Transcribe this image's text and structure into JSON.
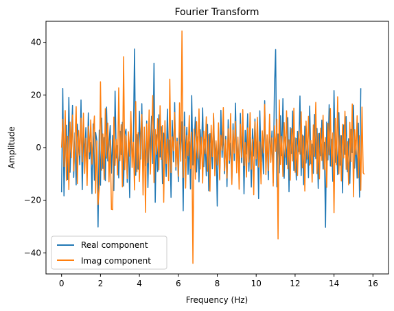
{
  "chart_data": {
    "type": "line",
    "title": "Fourier Transform",
    "xlabel": "Frequency (Hz)",
    "ylabel": "Amplitude",
    "xlim": [
      -0.8,
      16.8
    ],
    "ylim": [
      -48,
      48
    ],
    "xticks": [
      0,
      2,
      4,
      6,
      8,
      10,
      12,
      14,
      16
    ],
    "xtick_labels": [
      "0",
      "2",
      "4",
      "6",
      "8",
      "10",
      "12",
      "14",
      "16"
    ],
    "yticks": [
      -40,
      -20,
      0,
      20,
      40
    ],
    "ytick_labels": [
      "−40",
      "−20",
      "0",
      "20",
      "40"
    ],
    "grid": false,
    "legend_position": "lower-left",
    "x": {
      "start": 0,
      "step": 0.0625,
      "count": 256
    },
    "series": [
      {
        "name": "Real component",
        "color": "#1f77b4",
        "values": [
          -17.0,
          22.5,
          -18.4,
          3.2,
          8.5,
          -12.1,
          19.1,
          -9.4,
          2.7,
          16.0,
          -11.3,
          5.6,
          -14.2,
          8.9,
          3.0,
          -6.5,
          18.1,
          -16.0,
          4.4,
          -2.1,
          7.6,
          -10.8,
          13.2,
          -4.3,
          1.9,
          -17.5,
          9.0,
          -12.4,
          5.8,
          2.6,
          -30.2,
          6.7,
          -14.3,
          11.2,
          -7.9,
          3.8,
          -12.6,
          15.4,
          -5.1,
          1.2,
          8.4,
          -9.7,
          4.6,
          -16.3,
          21.5,
          -3.9,
          0.8,
          -11.5,
          6.2,
          -2.7,
          9.6,
          -14.6,
          5.1,
          7.0,
          -13.2,
          3.4,
          -19.0,
          11.0,
          -4.8,
          2.1,
          37.5,
          -10.5,
          5.0,
          -8.2,
          13.8,
          -4.4,
          16.7,
          -12.0,
          3.3,
          -6.9,
          10.1,
          -15.2,
          7.4,
          -2.3,
          11.9,
          -6.1,
          32.0,
          -20.8,
          4.9,
          -9.1,
          12.5,
          -3.6,
          8.0,
          -13.7,
          5.5,
          0.4,
          -11.0,
          14.6,
          -6.3,
          2.8,
          -18.9,
          10.3,
          -5.4,
          17.1,
          -8.6,
          3.6,
          -12.9,
          6.0,
          -1.5,
          9.8,
          -24.0,
          13.5,
          -4.1,
          7.7,
          -10.2,
          2.2,
          -15.7,
          19.8,
          -6.6,
          1.1,
          11.6,
          -9.3,
          4.1,
          -13.0,
          6.8,
          -2.0,
          15.1,
          -7.2,
          3.1,
          -10.7,
          8.8,
          -16.4,
          5.3,
          0.6,
          -8.0,
          12.3,
          -5.0,
          2.5,
          -22.2,
          7.9,
          -11.8,
          14.2,
          -3.7,
          6.4,
          -9.9,
          4.3,
          -14.8,
          10.6,
          -6.0,
          1.7,
          -12.7,
          9.1,
          -4.9,
          16.9,
          -7.5,
          2.9,
          -11.1,
          13.0,
          -5.7,
          8.3,
          -17.6,
          6.6,
          -2.4,
          12.8,
          -9.0,
          3.9,
          -15.0,
          7.1,
          -3.2,
          10.9,
          -6.8,
          4.7,
          -19.4,
          14.0,
          -5.3,
          1.4,
          -10.0,
          17.8,
          -8.3,
          3.5,
          -12.2,
          9.4,
          -4.6,
          6.3,
          -13.4,
          22.0,
          37.3,
          -14.9,
          5.2,
          -9.6,
          12.1,
          -3.0,
          18.6,
          -11.7,
          4.0,
          -6.4,
          11.4,
          -16.8,
          7.6,
          -2.2,
          13.9,
          -8.7,
          3.7,
          -12.3,
          6.1,
          -1.6,
          19.6,
          -10.6,
          4.8,
          -14.1,
          8.2,
          -5.9,
          2.3,
          -11.4,
          15.8,
          -6.2,
          1.3,
          -9.8,
          12.6,
          -4.2,
          7.3,
          -15.5,
          5.4,
          -3.1,
          10.4,
          -8.1,
          2.0,
          -30.3,
          9.7,
          -4.7,
          16.3,
          -7.0,
          3.2,
          -12.8,
          21.7,
          -5.6,
          1.8,
          -10.3,
          13.3,
          -6.7,
          4.5,
          -17.2,
          8.6,
          -2.6,
          11.8,
          -9.2,
          3.4,
          -13.6,
          6.9,
          -1.9,
          16.1,
          -7.8,
          2.7,
          -11.6,
          9.3,
          -18.8,
          22.6
        ]
      },
      {
        "name": "Imag component",
        "color": "#ff7f0e",
        "values": [
          0.0,
          10.8,
          -7.2,
          14.1,
          -12.5,
          4.3,
          -16.0,
          9.7,
          -3.8,
          12.4,
          -8.9,
          2.1,
          15.6,
          -13.7,
          6.5,
          -2.9,
          11.2,
          -5.4,
          13.1,
          -9.8,
          3.6,
          -14.4,
          8.1,
          -1.7,
          10.5,
          -6.3,
          4.9,
          12.0,
          -17.3,
          2.5,
          -21.7,
          -15.3,
          25.0,
          -8.6,
          5.2,
          -12.1,
          14.8,
          -4.0,
          9.3,
          -13.0,
          2.8,
          -23.5,
          -23.6,
          11.6,
          -6.8,
          3.1,
          -10.4,
          22.7,
          -5.0,
          8.7,
          -14.9,
          34.5,
          -8.4,
          4.4,
          -11.8,
          6.0,
          -3.3,
          13.7,
          -7.6,
          2.0,
          -16.1,
          17.5,
          -9.2,
          5.7,
          -12.9,
          3.4,
          12.6,
          -18.0,
          7.8,
          -24.6,
          9.0,
          -5.8,
          14.3,
          -10.1,
          4.2,
          19.8,
          -13.3,
          6.9,
          -2.6,
          11.0,
          -8.5,
          15.9,
          -4.5,
          8.4,
          -20.8,
          10.2,
          -6.1,
          3.3,
          -12.6,
          26.0,
          -9.5,
          4.1,
          -1.2,
          13.4,
          -7.3,
          2.4,
          -10.9,
          17.0,
          -5.2,
          44.3,
          -11.3,
          8.0,
          -15.4,
          4.6,
          -3.0,
          12.2,
          -7.9,
          5.9,
          -44.0,
          7.0,
          -12.0,
          9.9,
          -4.1,
          14.7,
          -8.1,
          3.9,
          -13.5,
          6.2,
          -2.3,
          11.7,
          -9.0,
          5.0,
          -16.6,
          8.5,
          -3.5,
          13.0,
          -10.7,
          2.6,
          -6.6,
          9.4,
          -12.3,
          4.7,
          -1.0,
          15.2,
          -8.8,
          3.0,
          -11.6,
          7.1,
          -4.8,
          12.9,
          -14.0,
          6.7,
          -2.1,
          10.0,
          -9.6,
          4.0,
          -15.8,
          8.9,
          -3.7,
          14.4,
          -6.9,
          1.9,
          -11.2,
          7.5,
          -5.5,
          13.3,
          -8.2,
          3.2,
          -17.9,
          9.8,
          -4.3,
          11.5,
          -7.4,
          2.2,
          -13.8,
          6.4,
          -2.0,
          16.4,
          -10.3,
          4.9,
          -8.7,
          12.7,
          -5.6,
          3.7,
          -14.6,
          8.3,
          -1.4,
          10.8,
          -34.7,
          18.1,
          -6.4,
          4.3,
          -11.0,
          9.5,
          -3.6,
          14.0,
          -8.0,
          2.9,
          -12.4,
          7.2,
          -5.1,
          15.0,
          -9.4,
          3.5,
          -10.6,
          6.3,
          -2.5,
          13.6,
          -7.7,
          4.4,
          -16.5,
          10.1,
          -4.4,
          11.9,
          -6.7,
          2.7,
          -13.1,
          8.6,
          -3.4,
          17.2,
          -9.9,
          5.3,
          -11.9,
          7.4,
          -4.9,
          12.3,
          -8.4,
          3.8,
          -15.1,
          9.2,
          -2.8,
          14.9,
          -7.1,
          5.6,
          -24.7,
          11.1,
          -6.5,
          19.3,
          -10.0,
          4.6,
          -12.7,
          8.8,
          -3.9,
          13.8,
          -8.3,
          2.3,
          -14.2,
          9.6,
          -5.3,
          16.6,
          -18.7,
          6.8,
          -2.7,
          12.1,
          -11.4,
          4.5,
          -16.2,
          15.4,
          -9.6,
          -10.2
        ]
      }
    ]
  }
}
